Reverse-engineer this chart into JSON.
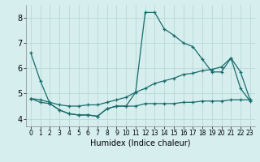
{
  "background_color": "#d6eeee",
  "grid_color": "#b8d8d8",
  "line_color": "#1a6b6b",
  "xlabel": "Humidex (Indice chaleur)",
  "xlim": [
    -0.5,
    23.5
  ],
  "ylim": [
    3.7,
    8.5
  ],
  "yticks": [
    4,
    5,
    6,
    7,
    8
  ],
  "xticks": [
    0,
    1,
    2,
    3,
    4,
    5,
    6,
    7,
    8,
    9,
    10,
    11,
    12,
    13,
    14,
    15,
    16,
    17,
    18,
    19,
    20,
    21,
    22,
    23
  ],
  "series1_x": [
    0,
    1,
    2,
    3,
    4,
    5,
    6,
    7,
    8,
    9,
    10,
    11,
    12,
    13,
    14,
    15,
    16,
    17,
    18,
    19,
    20,
    21,
    22,
    23
  ],
  "series1_y": [
    6.6,
    5.5,
    4.6,
    4.35,
    4.2,
    4.15,
    4.15,
    4.1,
    4.4,
    4.5,
    4.5,
    5.05,
    8.2,
    8.2,
    7.55,
    7.3,
    7.0,
    6.85,
    6.35,
    5.85,
    5.85,
    6.4,
    5.2,
    4.7
  ],
  "series2_x": [
    0,
    1,
    2,
    3,
    4,
    5,
    6,
    7,
    8,
    9,
    10,
    11,
    12,
    13,
    14,
    15,
    16,
    17,
    18,
    19,
    20,
    21,
    22,
    23
  ],
  "series2_y": [
    4.8,
    4.65,
    4.6,
    4.35,
    4.2,
    4.15,
    4.15,
    4.1,
    4.4,
    4.5,
    4.5,
    4.5,
    4.6,
    4.6,
    4.6,
    4.6,
    4.65,
    4.65,
    4.7,
    4.7,
    4.7,
    4.75,
    4.75,
    4.75
  ],
  "series3_x": [
    0,
    1,
    2,
    3,
    4,
    5,
    6,
    7,
    8,
    9,
    10,
    11,
    12,
    13,
    14,
    15,
    16,
    17,
    18,
    19,
    20,
    21,
    22,
    23
  ],
  "series3_y": [
    4.8,
    4.75,
    4.65,
    4.55,
    4.5,
    4.5,
    4.55,
    4.55,
    4.65,
    4.75,
    4.85,
    5.05,
    5.2,
    5.4,
    5.5,
    5.6,
    5.75,
    5.8,
    5.9,
    5.95,
    6.05,
    6.4,
    5.85,
    4.75
  ],
  "tick_fontsize_x": 5.5,
  "tick_fontsize_y": 7.0,
  "xlabel_fontsize": 7.0,
  "marker_size": 3,
  "line_width": 0.9
}
